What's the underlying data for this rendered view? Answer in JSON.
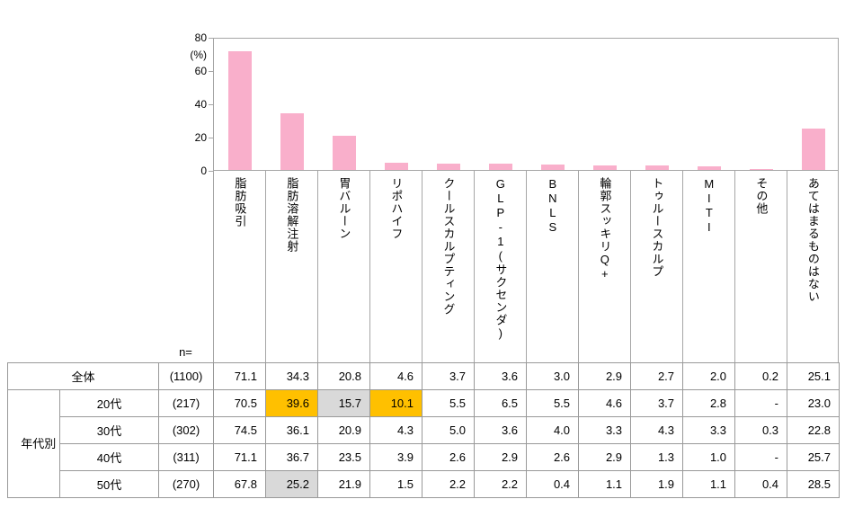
{
  "chart_data": {
    "type": "bar",
    "title": "",
    "xlabel": "",
    "ylabel": "(%)",
    "ylim": [
      0,
      80
    ],
    "yticks": [
      0,
      20,
      40,
      60,
      80
    ],
    "grid": false,
    "legend": false,
    "bar_color": "#f9afcb",
    "categories": [
      "脂肪吸引",
      "脂肪溶解注射",
      "胃バルーン",
      "リポハイフ",
      "クールスカルプティング",
      "GLP-1(サクセンダ)",
      "BNLS",
      "輪郭スッキリQ+",
      "トゥルースカルプ",
      "MITI",
      "その他",
      "あてはまるものはない"
    ],
    "values": [
      71.1,
      34.3,
      20.8,
      4.6,
      3.7,
      3.6,
      3.0,
      2.9,
      2.7,
      2.0,
      0.2,
      25.1
    ]
  },
  "chart": {
    "unit_label": "(%)"
  },
  "table": {
    "n_label": "n=",
    "group_label": "年代別",
    "highlight_colors": {
      "top": "#FFC000",
      "bottom": "#D9D9D9"
    },
    "rows": [
      {
        "label": "全体",
        "n": "(1100)",
        "values": [
          "71.1",
          "34.3",
          "20.8",
          "4.6",
          "3.7",
          "3.6",
          "3.0",
          "2.9",
          "2.7",
          "2.0",
          "0.2",
          "25.1"
        ]
      },
      {
        "label": "20代",
        "n": "(217)",
        "values": [
          "70.5",
          "39.6",
          "15.7",
          "10.1",
          "5.5",
          "6.5",
          "5.5",
          "4.6",
          "3.7",
          "2.8",
          "-",
          "23.0"
        ]
      },
      {
        "label": "30代",
        "n": "(302)",
        "values": [
          "74.5",
          "36.1",
          "20.9",
          "4.3",
          "5.0",
          "3.6",
          "4.0",
          "3.3",
          "4.3",
          "3.3",
          "0.3",
          "22.8"
        ]
      },
      {
        "label": "40代",
        "n": "(311)",
        "values": [
          "71.1",
          "36.7",
          "23.5",
          "3.9",
          "2.6",
          "2.9",
          "2.6",
          "2.9",
          "1.3",
          "1.0",
          "-",
          "25.7"
        ]
      },
      {
        "label": "50代",
        "n": "(270)",
        "values": [
          "67.8",
          "25.2",
          "21.9",
          "1.5",
          "2.2",
          "2.2",
          "0.4",
          "1.1",
          "1.9",
          "1.1",
          "0.4",
          "28.5"
        ]
      }
    ],
    "highlights": [
      {
        "row": 1,
        "col": 1,
        "color": "#FFC000"
      },
      {
        "row": 1,
        "col": 2,
        "color": "#D9D9D9"
      },
      {
        "row": 1,
        "col": 3,
        "color": "#FFC000"
      },
      {
        "row": 4,
        "col": 1,
        "color": "#D9D9D9"
      }
    ]
  }
}
